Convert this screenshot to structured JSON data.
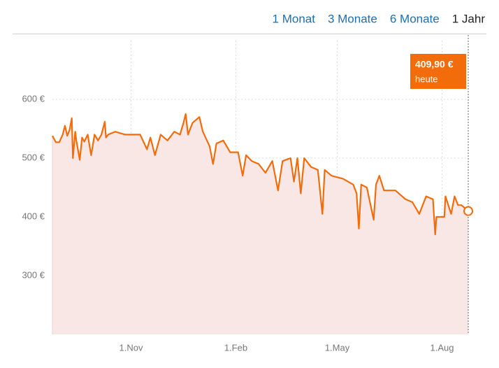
{
  "tabs": [
    "1 Monat",
    "3 Monate",
    "6 Monate",
    "1 Jahr"
  ],
  "selected_tab": 3,
  "chart_data": {
    "type": "line",
    "x": [
      0,
      3,
      6,
      9,
      11,
      13,
      15,
      17,
      18,
      20,
      21,
      24,
      26,
      28,
      31,
      34,
      37,
      40,
      43,
      46,
      47,
      49,
      55,
      64,
      77,
      83,
      86,
      90,
      95,
      101,
      107,
      112,
      115,
      117,
      119,
      123,
      129,
      132,
      138,
      141,
      144,
      150,
      156,
      163,
      167,
      170,
      175,
      181,
      187,
      193,
      198,
      202,
      209,
      212,
      215,
      218,
      221,
      227,
      233,
      237,
      239,
      245,
      255,
      264,
      267,
      269,
      271,
      276,
      282,
      284,
      287,
      291,
      301,
      310,
      316,
      322,
      328,
      334,
      336,
      337,
      344,
      345,
      350,
      353,
      356,
      359,
      362,
      365
    ],
    "values": [
      538,
      527,
      527,
      540,
      555,
      538,
      548,
      568,
      500,
      545,
      530,
      497,
      535,
      528,
      540,
      505,
      540,
      530,
      540,
      562,
      535,
      540,
      545,
      540,
      540,
      515,
      535,
      505,
      540,
      530,
      545,
      540,
      560,
      575,
      540,
      560,
      570,
      545,
      520,
      490,
      525,
      530,
      510,
      510,
      470,
      505,
      495,
      490,
      475,
      495,
      445,
      495,
      500,
      460,
      500,
      440,
      500,
      485,
      480,
      405,
      480,
      470,
      465,
      455,
      440,
      380,
      455,
      450,
      395,
      455,
      470,
      445,
      445,
      430,
      425,
      405,
      435,
      430,
      370,
      400,
      400,
      435,
      405,
      435,
      420,
      420,
      415,
      409.9
    ],
    "color": "#f36c0c",
    "area_color": "#f8e7e5",
    "xlim": [
      0,
      365
    ],
    "ylim": [
      200,
      700
    ],
    "xticks": [
      {
        "value": 69,
        "label": "1.Nov"
      },
      {
        "value": 161,
        "label": "1.Feb"
      },
      {
        "value": 250,
        "label": "1.May"
      },
      {
        "value": 342,
        "label": "1.Aug"
      }
    ],
    "yticks": [
      {
        "value": 300,
        "label": "300 €"
      },
      {
        "value": 400,
        "label": "400 €"
      },
      {
        "value": 500,
        "label": "500 €"
      },
      {
        "value": 600,
        "label": "600 €"
      }
    ],
    "grid": true,
    "current_label": "409,90 €",
    "current_note": "heute"
  }
}
